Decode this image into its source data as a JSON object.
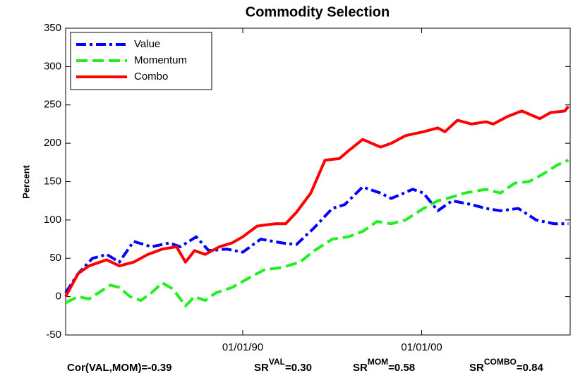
{
  "chart_data": {
    "type": "line",
    "title": "Commodity Selection",
    "y_label": "Percent",
    "xlim": [
      1980.1,
      2008.3
    ],
    "xticks": [
      {
        "value": 1990,
        "label": "01/01/90"
      },
      {
        "value": 2000,
        "label": "01/01/00"
      }
    ],
    "ylim": [
      -50,
      350
    ],
    "yticks": [
      -50,
      0,
      50,
      100,
      150,
      200,
      250,
      300,
      350
    ],
    "legend": "upper-left",
    "series": [
      {
        "name": "Value",
        "color": "#0000ff",
        "dash": "14,5,4,5",
        "x": [
          1980.1,
          1980.8,
          1981.6,
          1982.4,
          1983.1,
          1983.9,
          1984.9,
          1985.9,
          1986.5,
          1987.4,
          1988.1,
          1989.1,
          1990.0,
          1991.0,
          1992.2,
          1993.0,
          1994.0,
          1995.0,
          1995.7,
          1996.7,
          1997.7,
          1998.3,
          1999.5,
          2000.1,
          2000.9,
          2001.7,
          2002.8,
          2003.6,
          2004.4,
          2005.4,
          2006.4,
          2007.4,
          2008.2
        ],
        "values": [
          5,
          30,
          50,
          55,
          45,
          72,
          65,
          70,
          65,
          78,
          60,
          62,
          58,
          75,
          70,
          68,
          90,
          115,
          120,
          143,
          135,
          128,
          140,
          135,
          112,
          125,
          120,
          115,
          112,
          115,
          100,
          95,
          95
        ]
      },
      {
        "name": "Momentum",
        "color": "#22ee22",
        "dash": "16,7",
        "x": [
          1980.1,
          1980.8,
          1981.4,
          1982.6,
          1983.1,
          1983.7,
          1984.3,
          1984.9,
          1985.5,
          1986.1,
          1986.8,
          1987.3,
          1987.9,
          1988.5,
          1989.4,
          1990.4,
          1991.2,
          1992.2,
          1993.2,
          1994.0,
          1995.0,
          1995.9,
          1996.7,
          1997.5,
          1998.3,
          1999.1,
          2000.1,
          2000.9,
          2001.7,
          2002.4,
          2003.6,
          2004.4,
          2005.2,
          2006.0,
          2006.8,
          2007.6,
          2008.2
        ],
        "values": [
          -8,
          0,
          -3,
          15,
          12,
          0,
          -5,
          5,
          18,
          10,
          -12,
          0,
          -5,
          5,
          12,
          25,
          35,
          38,
          45,
          60,
          75,
          78,
          85,
          98,
          95,
          100,
          115,
          125,
          130,
          135,
          140,
          135,
          148,
          150,
          160,
          172,
          178
        ]
      },
      {
        "name": "Combo",
        "color": "#ff0000",
        "dash": "",
        "x": [
          1980.1,
          1980.8,
          1981.4,
          1982.4,
          1983.1,
          1983.9,
          1984.7,
          1985.5,
          1986.3,
          1986.8,
          1987.3,
          1987.9,
          1988.7,
          1989.4,
          1990.0,
          1990.8,
          1991.8,
          1992.4,
          1993.0,
          1993.8,
          1994.6,
          1995.4,
          1995.9,
          1996.7,
          1997.7,
          1998.3,
          1999.1,
          2000.1,
          2000.9,
          2001.3,
          2002.0,
          2002.8,
          2003.6,
          2004.0,
          2004.8,
          2005.6,
          2006.6,
          2007.2,
          2008.0,
          2008.2
        ],
        "values": [
          0,
          30,
          40,
          48,
          40,
          45,
          55,
          62,
          65,
          45,
          60,
          55,
          65,
          70,
          78,
          92,
          95,
          95,
          110,
          135,
          178,
          180,
          190,
          205,
          195,
          200,
          210,
          215,
          220,
          215,
          230,
          225,
          228,
          225,
          235,
          242,
          232,
          240,
          242,
          248
        ]
      }
    ],
    "annotations": [
      {
        "text": "Cor(VAL,MOM)=-0.39"
      },
      {
        "text": "SR",
        "sup": "VAL",
        "rest": "=0.30"
      },
      {
        "text": "SR",
        "sup": "MOM",
        "rest": "=0.58"
      },
      {
        "text": "SR",
        "sup": "COMBO",
        "rest": "=0.84"
      }
    ]
  }
}
